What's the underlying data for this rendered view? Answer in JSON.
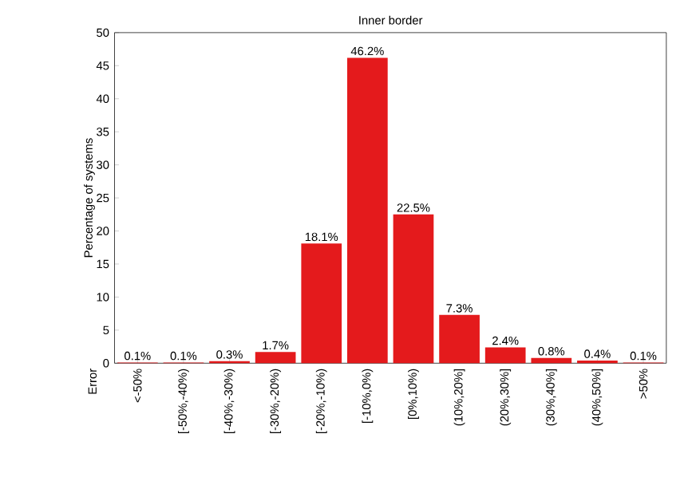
{
  "chart_data": {
    "type": "bar",
    "title": "Inner border",
    "annotations": [
      "Error"
    ],
    "ylabel": "Percentage of systems",
    "categories": [
      "<-50%",
      "[-50%,-40%)",
      "[-40%,-30%)",
      "[-30%,-20%)",
      "[-20%,-10%)",
      "[-10%,0%)",
      "[0%,10%)",
      "(10%,20%]",
      "(20%,30%]",
      "(30%,40%]",
      "(40%,50%]",
      ">50%"
    ],
    "values": [
      0.1,
      0.1,
      0.3,
      1.7,
      18.1,
      46.2,
      22.5,
      7.3,
      2.4,
      0.8,
      0.4,
      0.1
    ],
    "color": "#e41a1c",
    "ylim": [
      0,
      50
    ],
    "yticks": [
      0,
      5,
      10,
      15,
      20,
      25,
      30,
      35,
      40,
      45,
      50
    ],
    "value_labels": [
      "0.1%",
      "0.1%",
      "0.3%",
      "1.7%",
      "18.1%",
      "46.2%",
      "22.5%",
      "7.3%",
      "2.4%",
      "0.8%",
      "0.4%",
      "0.1%"
    ]
  }
}
